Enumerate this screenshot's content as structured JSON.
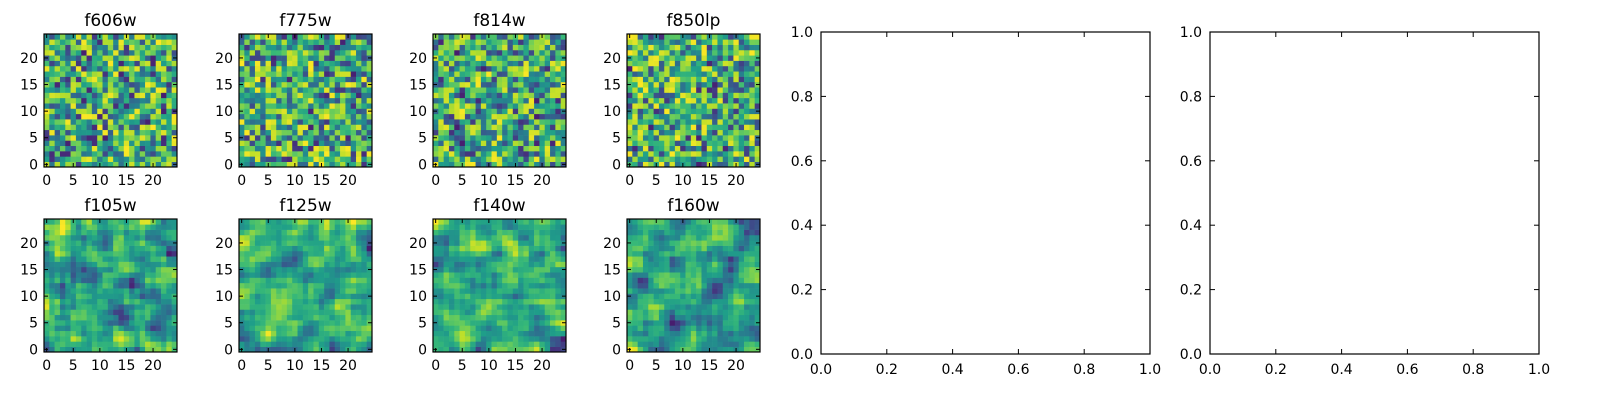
{
  "figure": {
    "background": "#ffffff"
  },
  "chart_data": [
    {
      "type": "heatmap",
      "title": "f606w",
      "grid_size": 25,
      "colormap": "viridis",
      "xticks": [
        "0",
        "5",
        "10",
        "15",
        "20"
      ],
      "yticks": [
        "0",
        "5",
        "10",
        "15",
        "20"
      ],
      "xlim": [
        0,
        24
      ],
      "ylim": [
        0,
        24
      ]
    },
    {
      "type": "heatmap",
      "title": "f775w",
      "grid_size": 25,
      "colormap": "viridis",
      "xticks": [
        "0",
        "5",
        "10",
        "15",
        "20"
      ],
      "yticks": [
        "0",
        "5",
        "10",
        "15",
        "20"
      ],
      "xlim": [
        0,
        24
      ],
      "ylim": [
        0,
        24
      ]
    },
    {
      "type": "heatmap",
      "title": "f814w",
      "grid_size": 25,
      "colormap": "viridis",
      "xticks": [
        "0",
        "5",
        "10",
        "15",
        "20"
      ],
      "yticks": [
        "0",
        "5",
        "10",
        "15",
        "20"
      ],
      "xlim": [
        0,
        24
      ],
      "ylim": [
        0,
        24
      ]
    },
    {
      "type": "heatmap",
      "title": "f850lp",
      "grid_size": 25,
      "colormap": "viridis",
      "xticks": [
        "0",
        "5",
        "10",
        "15",
        "20"
      ],
      "yticks": [
        "0",
        "5",
        "10",
        "15",
        "20"
      ],
      "xlim": [
        0,
        24
      ],
      "ylim": [
        0,
        24
      ]
    },
    {
      "type": "heatmap",
      "title": "f105w",
      "grid_size": 25,
      "colormap": "viridis",
      "xticks": [
        "0",
        "5",
        "10",
        "15",
        "20"
      ],
      "yticks": [
        "0",
        "5",
        "10",
        "15",
        "20"
      ],
      "xlim": [
        0,
        24
      ],
      "ylim": [
        0,
        24
      ]
    },
    {
      "type": "heatmap",
      "title": "f125w",
      "grid_size": 25,
      "colormap": "viridis",
      "xticks": [
        "0",
        "5",
        "10",
        "15",
        "20"
      ],
      "yticks": [
        "0",
        "5",
        "10",
        "15",
        "20"
      ],
      "xlim": [
        0,
        24
      ],
      "ylim": [
        0,
        24
      ]
    },
    {
      "type": "heatmap",
      "title": "f140w",
      "grid_size": 25,
      "colormap": "viridis",
      "xticks": [
        "0",
        "5",
        "10",
        "15",
        "20"
      ],
      "yticks": [
        "0",
        "5",
        "10",
        "15",
        "20"
      ],
      "xlim": [
        0,
        24
      ],
      "ylim": [
        0,
        24
      ]
    },
    {
      "type": "heatmap",
      "title": "f160w",
      "grid_size": 25,
      "colormap": "viridis",
      "xticks": [
        "0",
        "5",
        "10",
        "15",
        "20"
      ],
      "yticks": [
        "0",
        "5",
        "10",
        "15",
        "20"
      ],
      "xlim": [
        0,
        24
      ],
      "ylim": [
        0,
        24
      ]
    },
    {
      "type": "scatter",
      "title": "",
      "xlabel": "",
      "ylabel": "",
      "xlim": [
        0,
        1
      ],
      "ylim": [
        0,
        1
      ],
      "xticks": [
        "0.0",
        "0.2",
        "0.4",
        "0.6",
        "0.8",
        "1.0"
      ],
      "yticks": [
        "0.0",
        "0.2",
        "0.4",
        "0.6",
        "0.8",
        "1.0"
      ],
      "series": []
    },
    {
      "type": "scatter",
      "title": "",
      "xlabel": "",
      "ylabel": "",
      "xlim": [
        0,
        1
      ],
      "ylim": [
        0,
        1
      ],
      "xticks": [
        "0.0",
        "0.2",
        "0.4",
        "0.6",
        "0.8",
        "1.0"
      ],
      "yticks": [
        "0.0",
        "0.2",
        "0.4",
        "0.6",
        "0.8",
        "1.0"
      ],
      "series": []
    }
  ]
}
